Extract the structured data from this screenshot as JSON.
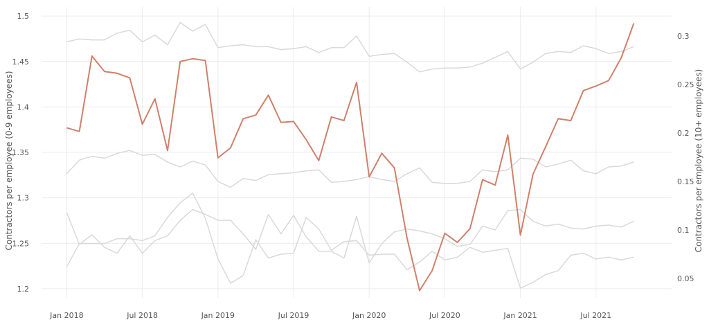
{
  "chart_data": {
    "type": "line",
    "ylabel": "Contractors per employee (0-9 employees)",
    "y2label": "Contractors per employee (10+ employees)",
    "ylim": [
      1.19,
      1.51
    ],
    "y2lim": [
      0.03,
      0.33
    ],
    "yticks": [
      1.2,
      1.25,
      1.3,
      1.35,
      1.4,
      1.45,
      1.5
    ],
    "y2ticks": [
      0.05,
      0.1,
      0.15,
      0.2,
      0.25,
      0.3
    ],
    "xticks": [
      {
        "date": "2018-01",
        "label": "Jan 2018"
      },
      {
        "date": "2018-07",
        "label": "Jul 2018"
      },
      {
        "date": "2019-01",
        "label": "Jan 2019"
      },
      {
        "date": "2019-07",
        "label": "Jul 2019"
      },
      {
        "date": "2020-01",
        "label": "Jan 2020"
      },
      {
        "date": "2020-07",
        "label": "Jul 2020"
      },
      {
        "date": "2021-01",
        "label": "Jan 2021"
      },
      {
        "date": "2021-07",
        "label": "Jul 2021"
      }
    ],
    "xlim": [
      "2017-11",
      "2022-01"
    ],
    "grid": true,
    "months": [
      "2018-01",
      "2018-02",
      "2018-03",
      "2018-04",
      "2018-05",
      "2018-06",
      "2018-07",
      "2018-08",
      "2018-09",
      "2018-10",
      "2018-11",
      "2018-12",
      "2019-01",
      "2019-02",
      "2019-03",
      "2019-04",
      "2019-05",
      "2019-06",
      "2019-07",
      "2019-08",
      "2019-09",
      "2019-10",
      "2019-11",
      "2019-12",
      "2020-01",
      "2020-02",
      "2020-03",
      "2020-04",
      "2020-05",
      "2020-06",
      "2020-07",
      "2020-08",
      "2020-09",
      "2020-10",
      "2020-11",
      "2020-12",
      "2021-01",
      "2021-02",
      "2021-03",
      "2021-04",
      "2021-05",
      "2021-06",
      "2021-07",
      "2021-08",
      "2021-09",
      "2021-10"
    ],
    "series": [
      {
        "axis": "left",
        "color": "#d0806a",
        "values": [
          1.377,
          1.373,
          1.456,
          1.439,
          1.437,
          1.432,
          1.381,
          1.409,
          1.352,
          1.45,
          1.453,
          1.451,
          1.344,
          1.355,
          1.387,
          1.391,
          1.413,
          1.383,
          1.384,
          1.364,
          1.341,
          1.389,
          1.385,
          1.427,
          1.323,
          1.349,
          1.333,
          1.256,
          1.198,
          1.22,
          1.261,
          1.251,
          1.266,
          1.32,
          1.314,
          1.369,
          1.259,
          1.326,
          1.356,
          1.387,
          1.385,
          1.418,
          1.423,
          1.429,
          1.454,
          1.492
        ]
      },
      {
        "axis": "right",
        "color": "#d9d9d9",
        "values": [
          0.294,
          0.297,
          0.296,
          0.296,
          0.303,
          0.306,
          0.294,
          0.301,
          0.291,
          0.314,
          0.305,
          0.312,
          0.288,
          0.29,
          0.291,
          0.289,
          0.289,
          0.286,
          0.287,
          0.289,
          0.283,
          0.288,
          0.288,
          0.3,
          0.279,
          0.281,
          0.282,
          0.273,
          0.263,
          0.266,
          0.267,
          0.267,
          0.268,
          0.272,
          0.278,
          0.284,
          0.266,
          0.273,
          0.282,
          0.284,
          0.283,
          0.29,
          0.287,
          0.282,
          0.284,
          0.289
        ]
      },
      {
        "axis": "right",
        "color": "#d9d9d9",
        "values": [
          0.158,
          0.172,
          0.176,
          0.174,
          0.179,
          0.182,
          0.177,
          0.178,
          0.17,
          0.165,
          0.171,
          0.167,
          0.15,
          0.144,
          0.153,
          0.151,
          0.157,
          0.158,
          0.159,
          0.161,
          0.162,
          0.149,
          0.15,
          0.152,
          0.155,
          0.152,
          0.15,
          0.158,
          0.164,
          0.149,
          0.148,
          0.148,
          0.15,
          0.162,
          0.16,
          0.162,
          0.174,
          0.173,
          0.165,
          0.168,
          0.172,
          0.161,
          0.158,
          0.165,
          0.166,
          0.17
        ]
      },
      {
        "axis": "right",
        "color": "#d9d9d9",
        "values": [
          0.118,
          0.085,
          0.095,
          0.082,
          0.076,
          0.094,
          0.076,
          0.089,
          0.094,
          0.11,
          0.121,
          0.116,
          0.11,
          0.11,
          0.096,
          0.08,
          0.116,
          0.096,
          0.115,
          0.093,
          0.078,
          0.078,
          0.071,
          0.114,
          0.066,
          0.086,
          0.098,
          0.101,
          0.099,
          0.096,
          0.091,
          0.083,
          0.085,
          0.104,
          0.1,
          0.12,
          0.121,
          0.109,
          0.104,
          0.106,
          0.102,
          0.101,
          0.104,
          0.105,
          0.103,
          0.109
        ]
      },
      {
        "axis": "right",
        "color": "#d9d9d9",
        "values": [
          0.062,
          0.086,
          0.086,
          0.086,
          0.091,
          0.091,
          0.089,
          0.094,
          0.113,
          0.128,
          0.138,
          0.112,
          0.07,
          0.045,
          0.053,
          0.09,
          0.071,
          0.075,
          0.076,
          0.113,
          0.101,
          0.079,
          0.088,
          0.089,
          0.074,
          0.075,
          0.075,
          0.059,
          0.067,
          0.078,
          0.069,
          0.072,
          0.082,
          0.077,
          0.079,
          0.081,
          0.04,
          0.046,
          0.054,
          0.058,
          0.074,
          0.076,
          0.07,
          0.072,
          0.069,
          0.072
        ]
      }
    ]
  }
}
